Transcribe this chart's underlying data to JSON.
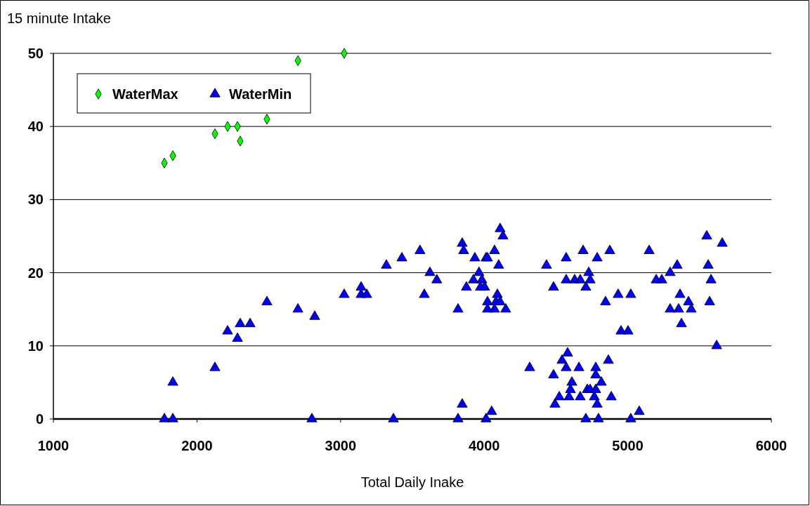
{
  "chart_data": {
    "type": "scatter",
    "title": "15 minute Intake",
    "xlabel": "Total Daily Inake",
    "xlim": [
      1000,
      6000
    ],
    "xticks": [
      1000,
      2000,
      3000,
      4000,
      5000,
      6000
    ],
    "ylim": [
      0,
      50
    ],
    "yticks": [
      0,
      10,
      20,
      30,
      40,
      50
    ],
    "grid": "y",
    "legend": "top left",
    "series": [
      {
        "name": "WaterMax",
        "color": "#00ff00",
        "marker": "diamond",
        "x": [
          1773,
          1832,
          2125,
          2213,
          2282,
          2301,
          2487,
          2703,
          3025
        ],
        "values": [
          35,
          36,
          39,
          40,
          40,
          38,
          41,
          49,
          50
        ]
      },
      {
        "name": "WaterMin",
        "color": "#0000ff",
        "marker": "triangle",
        "x": [
          1773,
          1832,
          1832,
          2125,
          2213,
          2282,
          2301,
          2370,
          2487,
          2703,
          2820,
          2800,
          3025,
          3143,
          3143,
          3182,
          3319,
          3368,
          3427,
          3553,
          3583,
          3622,
          3670,
          3818,
          3818,
          3847,
          3857,
          3847,
          3876,
          3925,
          3935,
          3964,
          3974,
          3984,
          4003,
          4013,
          4023,
          4023,
          4023,
          4013,
          4052,
          4072,
          4072,
          4082,
          4092,
          4101,
          4111,
          4111,
          4131,
          4150,
          4317,
          4434,
          4493,
          4483,
          4483,
          4523,
          4542,
          4571,
          4571,
          4571,
          4581,
          4591,
          4601,
          4611,
          4630,
          4669,
          4669,
          4689,
          4660,
          4708,
          4708,
          4718,
          4728,
          4738,
          4738,
          4767,
          4777,
          4777,
          4777,
          4787,
          4787,
          4796,
          4816,
          4845,
          4865,
          4875,
          4885,
          4933,
          4953,
          5002,
          5021,
          5021,
          5080,
          5149,
          5198,
          5237,
          5295,
          5295,
          5344,
          5354,
          5364,
          5374,
          5423,
          5442,
          5550,
          5560,
          5570,
          5580,
          5619,
          5658
        ],
        "values": [
          0,
          0,
          5,
          7,
          12,
          11,
          13,
          13,
          16,
          15,
          14,
          0,
          17,
          17,
          18,
          17,
          21,
          0,
          22,
          23,
          17,
          20,
          19,
          15,
          0,
          24,
          23,
          2,
          18,
          19,
          22,
          20,
          18,
          19,
          18,
          22,
          22,
          16,
          15,
          0,
          1,
          15,
          23,
          16,
          17,
          21,
          16,
          26,
          25,
          15,
          7,
          21,
          2,
          18,
          6,
          3,
          8,
          22,
          19,
          7,
          9,
          3,
          4,
          5,
          19,
          19,
          3,
          23,
          7,
          18,
          0,
          4,
          20,
          19,
          4,
          3,
          4,
          7,
          6,
          22,
          2,
          0,
          5,
          16,
          8,
          23,
          3,
          17,
          12,
          12,
          17,
          0,
          1,
          23,
          19,
          19,
          15,
          20,
          21,
          15,
          17,
          13,
          16,
          15,
          25,
          21,
          16,
          19,
          10,
          24
        ]
      }
    ]
  }
}
